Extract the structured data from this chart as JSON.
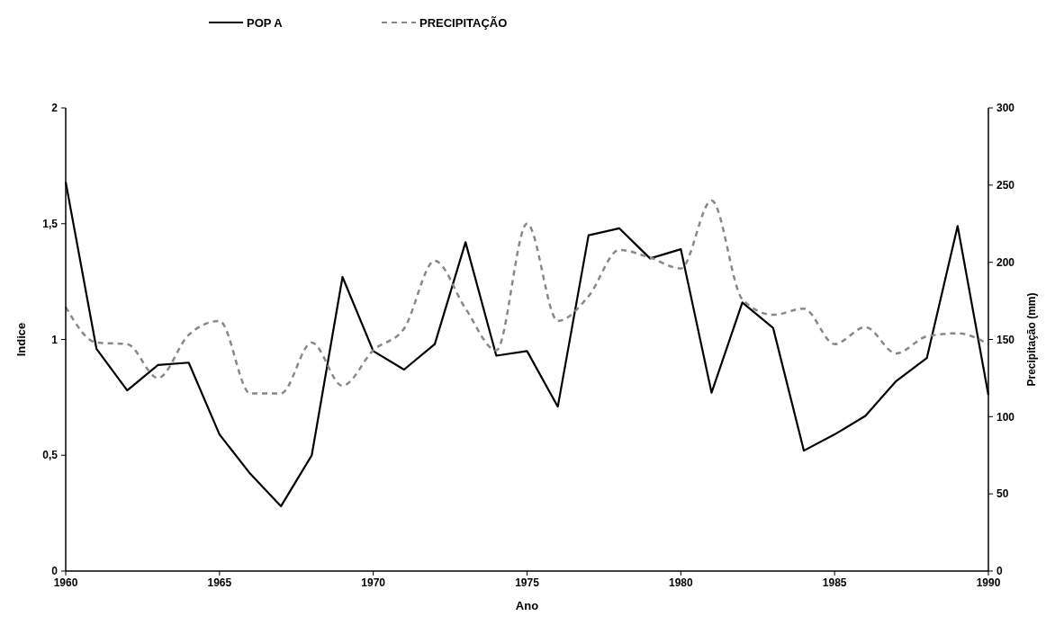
{
  "chart_data": {
    "type": "line",
    "xlabel": "Ano",
    "ylabel": "Indice",
    "y2label": "Precipitação (mm)",
    "x": [
      1960,
      1961,
      1962,
      1963,
      1964,
      1965,
      1966,
      1967,
      1968,
      1969,
      1970,
      1971,
      1972,
      1973,
      1974,
      1975,
      1976,
      1977,
      1978,
      1979,
      1980,
      1981,
      1982,
      1983,
      1984,
      1985,
      1986,
      1987,
      1988,
      1989,
      1990
    ],
    "series": [
      {
        "name": "POP A",
        "color": "#000000",
        "line_style": "solid",
        "values": [
          1.68,
          0.96,
          0.78,
          0.89,
          0.9,
          0.59,
          0.42,
          0.28,
          0.5,
          1.27,
          0.95,
          0.87,
          0.98,
          1.42,
          0.93,
          0.95,
          0.71,
          1.45,
          1.48,
          1.35,
          1.39,
          0.77,
          1.16,
          1.05,
          0.52,
          0.59,
          0.67,
          0.82,
          0.92,
          1.49,
          0.76
        ]
      },
      {
        "name": "PRECIPITAÇÃO",
        "color": "#888888",
        "line_style": "dashed",
        "axis": "y2",
        "values": [
          171,
          148,
          147,
          125,
          153,
          162,
          115,
          115,
          148,
          120,
          143,
          157,
          201,
          170,
          143,
          225,
          162,
          178,
          208,
          203,
          196,
          240,
          176,
          166,
          170,
          147,
          158,
          141,
          152,
          154,
          147
        ]
      }
    ],
    "xlim": [
      1960,
      1990
    ],
    "xticks": [
      1960,
      1965,
      1970,
      1975,
      1980,
      1985,
      1990
    ],
    "ylim": [
      0,
      2
    ],
    "yticks": [
      0,
      {
        "value": 0.5,
        "label": "0,5"
      },
      1,
      {
        "value": 1.5,
        "label": "1,5"
      },
      2
    ],
    "y2lim": [
      0,
      300
    ],
    "y2ticks": [
      0,
      50,
      100,
      150,
      200,
      250,
      300
    ],
    "grid": false,
    "legend": "top",
    "marker": "none"
  }
}
